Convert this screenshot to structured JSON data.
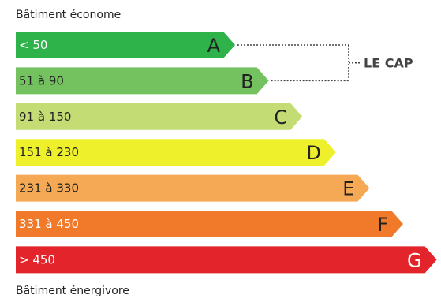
{
  "labels": {
    "top": "Bâtiment économe",
    "bottom": "Bâtiment énergivore"
  },
  "chart_data": {
    "type": "bar",
    "title": "",
    "categories": [
      "A",
      "B",
      "C",
      "D",
      "E",
      "F",
      "G"
    ],
    "ranges": [
      "< 50",
      "51 à 90",
      "91 à 150",
      "151 à 230",
      "231 à 330",
      "331 à 450",
      "> 450"
    ],
    "values": [
      1,
      2,
      3,
      4,
      5,
      6,
      7
    ],
    "colors": [
      "#2db34a",
      "#74c15f",
      "#c3dc73",
      "#eef02c",
      "#f6a954",
      "#f07a2a",
      "#e3242b"
    ],
    "letter_colors": [
      "#222222",
      "#222222",
      "#222222",
      "#222222",
      "#222222",
      "#222222",
      "#ffffff"
    ],
    "range_colors": [
      "#ffffff",
      "#222222",
      "#222222",
      "#222222",
      "#222222",
      "#ffffff",
      "#ffffff"
    ],
    "annotation": {
      "text": "LE CAP",
      "classes": [
        "A",
        "B"
      ],
      "color": "#444444"
    }
  }
}
